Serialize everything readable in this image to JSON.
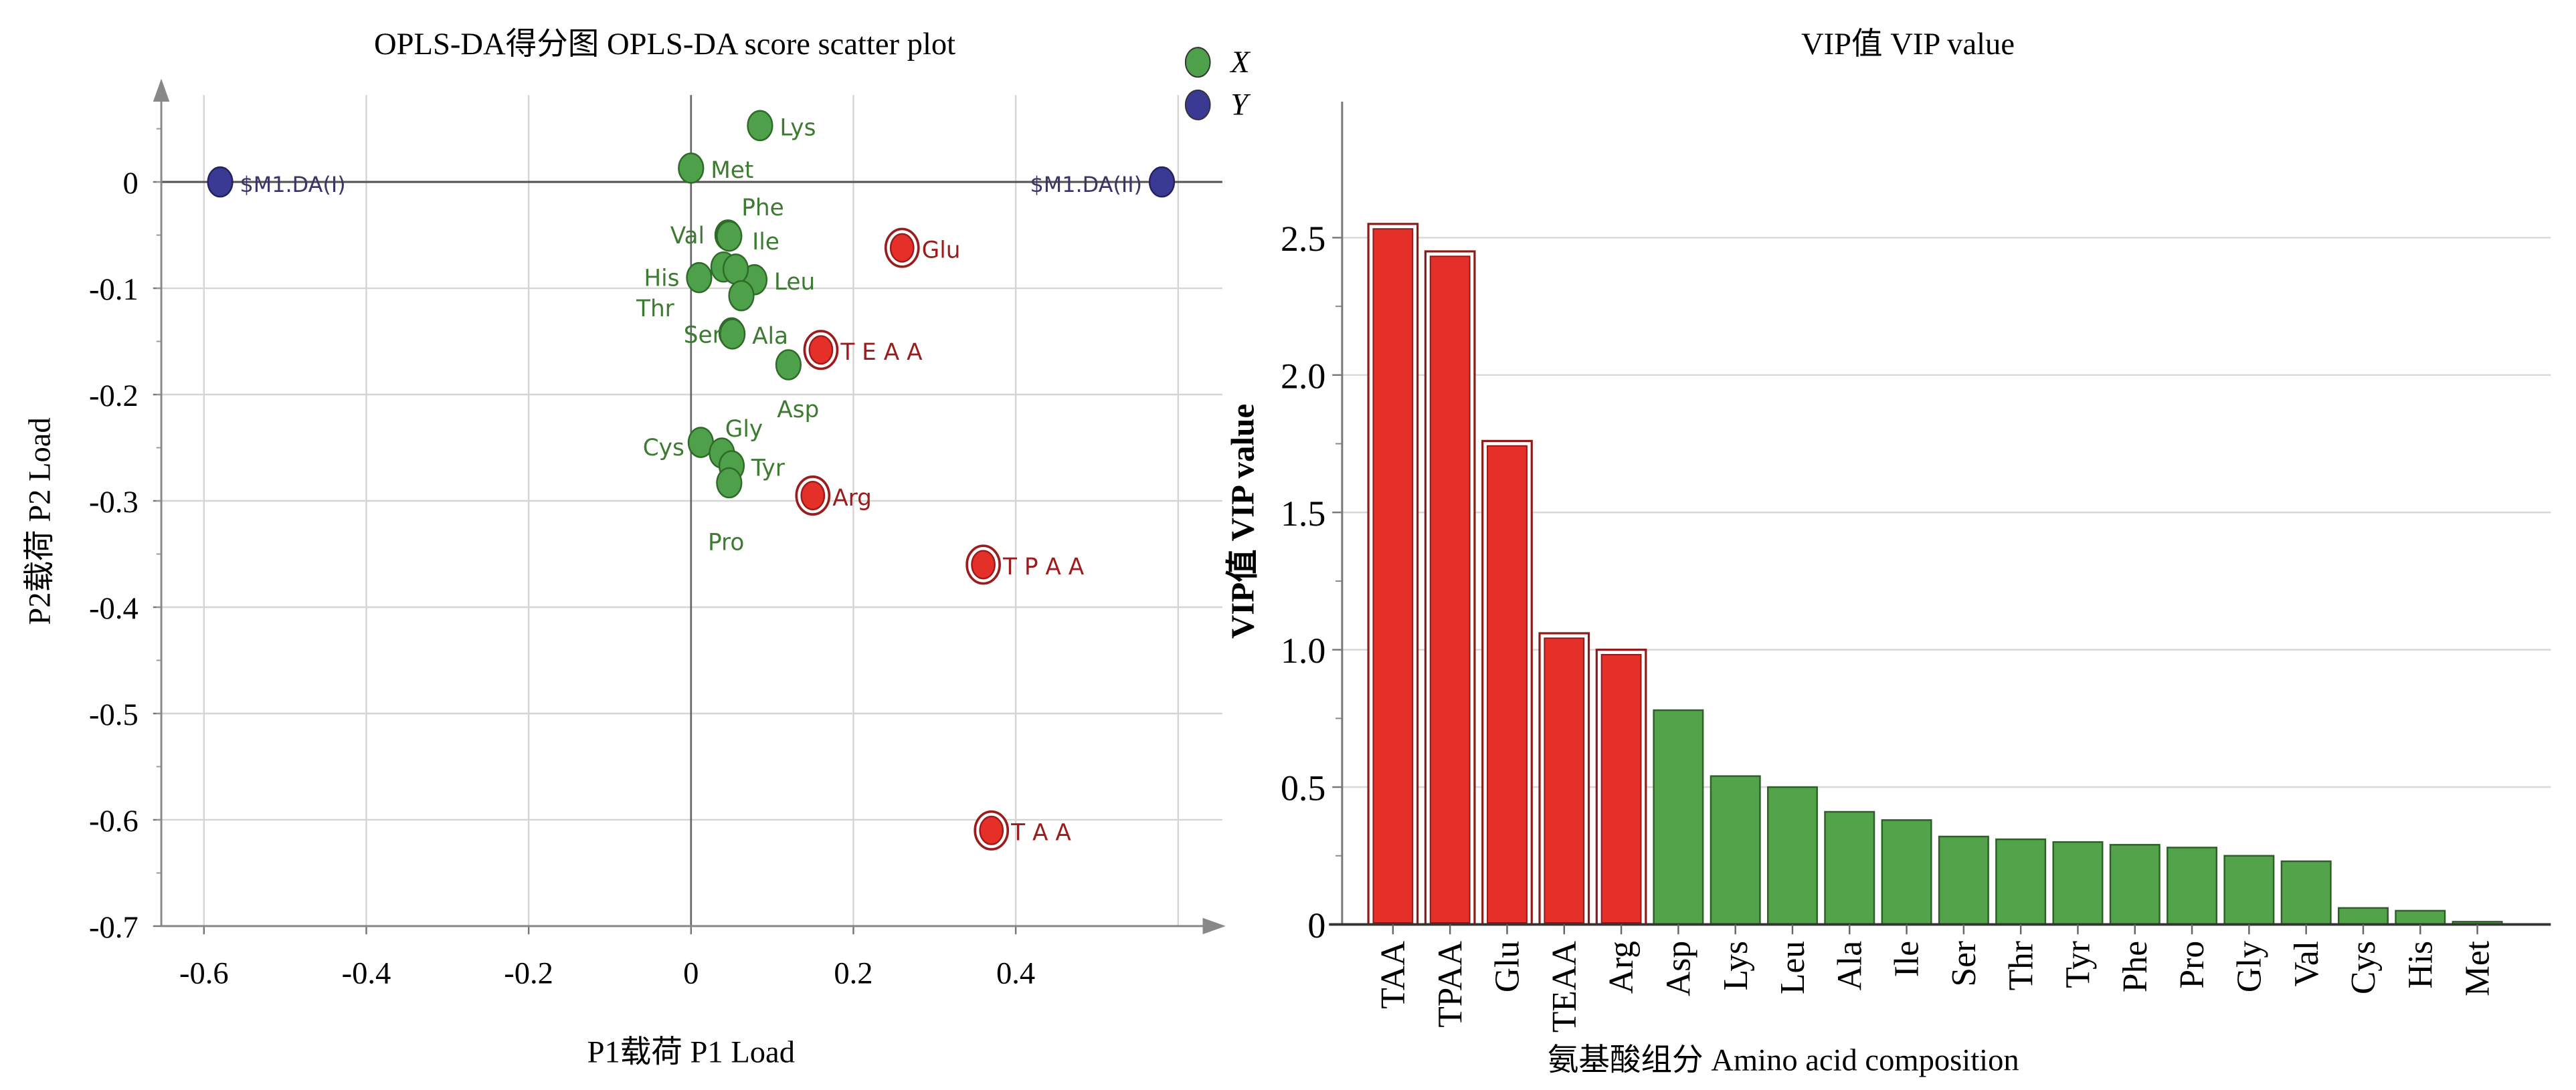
{
  "chart_data": [
    {
      "type": "scatter",
      "title": "OPLS-DA得分图 OPLS-DA score scatter plot",
      "xlabel": "P1载荷 P1 Load",
      "ylabel": "P2载荷 P2 Load",
      "xlim": [
        -0.65,
        0.62
      ],
      "ylim": [
        -0.7,
        0.09
      ],
      "xticks": [
        -0.6,
        -0.4,
        -0.2,
        0,
        0.2,
        0.4
      ],
      "yticks": [
        0,
        -0.1,
        -0.2,
        -0.3,
        -0.4,
        -0.5,
        -0.6,
        -0.7
      ],
      "grid": true,
      "legend": {
        "position": "top-right",
        "entries": [
          {
            "name": "X",
            "color": "#4ea04a"
          },
          {
            "name": "Y",
            "color": "#3a3a94"
          }
        ]
      },
      "colors": {
        "x_var": "#4ea04a",
        "y_var": "#3a3a94",
        "vip_high": "#e5302a",
        "label_green": "#3d7a32",
        "label_red": "#9b1c1c",
        "label_blue": "#3b3565"
      },
      "points": [
        {
          "label": "$M1.DA(I)",
          "x": -0.58,
          "y": 0.0,
          "group": "Y"
        },
        {
          "label": "$M1.DA(II)",
          "x": 0.58,
          "y": 0.0,
          "group": "Y"
        },
        {
          "label": "Lys",
          "x": 0.085,
          "y": 0.053,
          "group": "X"
        },
        {
          "label": "Met",
          "x": 0.0,
          "y": 0.013,
          "group": "X"
        },
        {
          "label": "Val",
          "x": 0.045,
          "y": -0.05,
          "group": "X"
        },
        {
          "label": "Phe",
          "x": 0.046,
          "y": -0.05,
          "group": "X"
        },
        {
          "label": "Ile",
          "x": 0.047,
          "y": -0.051,
          "group": "X"
        },
        {
          "label": "His",
          "x": 0.01,
          "y": -0.09,
          "group": "X"
        },
        {
          "label": "Thr",
          "x": 0.04,
          "y": -0.08,
          "group": "X"
        },
        {
          "label": "Leu",
          "x": 0.078,
          "y": -0.092,
          "group": "X"
        },
        {
          "label": "",
          "x": 0.055,
          "y": -0.082,
          "group": "X"
        },
        {
          "label": "",
          "x": 0.062,
          "y": -0.107,
          "group": "X"
        },
        {
          "label": "Ser",
          "x": 0.05,
          "y": -0.142,
          "group": "X"
        },
        {
          "label": "Ala",
          "x": 0.051,
          "y": -0.143,
          "group": "X"
        },
        {
          "label": "Asp",
          "x": 0.12,
          "y": -0.172,
          "group": "X"
        },
        {
          "label": "Cys",
          "x": 0.012,
          "y": -0.245,
          "group": "X"
        },
        {
          "label": "Gly",
          "x": 0.038,
          "y": -0.255,
          "group": "X"
        },
        {
          "label": "Tyr",
          "x": 0.05,
          "y": -0.267,
          "group": "X"
        },
        {
          "label": "Pro",
          "x": 0.047,
          "y": -0.283,
          "group": "X"
        },
        {
          "label": "Glu",
          "x": 0.26,
          "y": -0.062,
          "group": "VIP"
        },
        {
          "label": "T E A A",
          "x": 0.16,
          "y": -0.158,
          "group": "VIP"
        },
        {
          "label": "Arg",
          "x": 0.15,
          "y": -0.295,
          "group": "VIP"
        },
        {
          "label": "T P A A",
          "x": 0.36,
          "y": -0.36,
          "group": "VIP"
        },
        {
          "label": "T A A",
          "x": 0.37,
          "y": -0.61,
          "group": "VIP"
        }
      ]
    },
    {
      "type": "bar",
      "title": "VIP值 VIP value",
      "xlabel": "氨基酸组分 Amino acid composition",
      "ylabel": "VIP值 VIP value",
      "ylim": [
        0,
        2.65
      ],
      "yticks": [
        0,
        0.5,
        1.0,
        1.5,
        2.0,
        2.5
      ],
      "ytick_labels": [
        "0",
        "0.5",
        "1.0",
        "1.5",
        "2.0",
        "2.5"
      ],
      "grid": true,
      "categories": [
        "TAA",
        "TPAA",
        "Glu",
        "TEAA",
        "Arg",
        "Asp",
        "Lys",
        "Leu",
        "Ala",
        "Ile",
        "Ser",
        "Thr",
        "Tyr",
        "Phe",
        "Pro",
        "Gly",
        "Val",
        "Cys",
        "His",
        "Met"
      ],
      "values": [
        2.55,
        2.45,
        1.76,
        1.06,
        1.0,
        0.78,
        0.54,
        0.5,
        0.41,
        0.38,
        0.32,
        0.31,
        0.3,
        0.29,
        0.28,
        0.25,
        0.23,
        0.06,
        0.05,
        0.01
      ],
      "highlight_count": 5,
      "colors": {
        "high": "#e5302a",
        "low": "#52a349"
      }
    }
  ]
}
